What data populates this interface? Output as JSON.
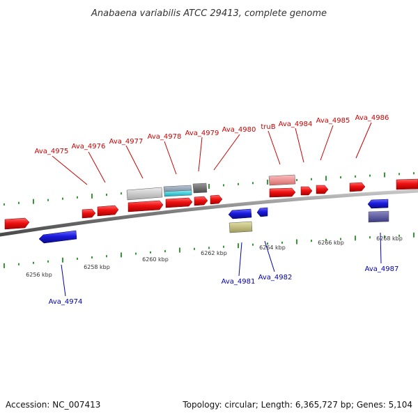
{
  "title": "Anabaena variabilis ATCC 29413, complete genome",
  "footer": {
    "accession": "Accession: NC_007413",
    "topology": "Topology: circular; Length: 6,365,727 bp; Genes: 5,104"
  },
  "colors": {
    "forward_gene": "#ee1111",
    "reverse_gene": "#1a1add",
    "backbone": "#888888",
    "ticks": "#339933",
    "forward_label": "#cc0000",
    "reverse_label": "#0000aa"
  },
  "scale_labels": [
    "6256 kbp",
    "6258 kbp",
    "6260 kbp",
    "6262 kbp",
    "6264 kbp",
    "6266 kbp",
    "6268 kbp"
  ],
  "gene_labels": {
    "forward": [
      "Ava_4975",
      "Ava_4976",
      "Ava_4977",
      "Ava_4978",
      "Ava_4979",
      "Ava_4980",
      "truB",
      "Ava_4984",
      "Ava_4985",
      "Ava_4986"
    ],
    "reverse": [
      "Ava_4974",
      "Ava_4981",
      "Ava_4982",
      "Ava_4987"
    ]
  }
}
